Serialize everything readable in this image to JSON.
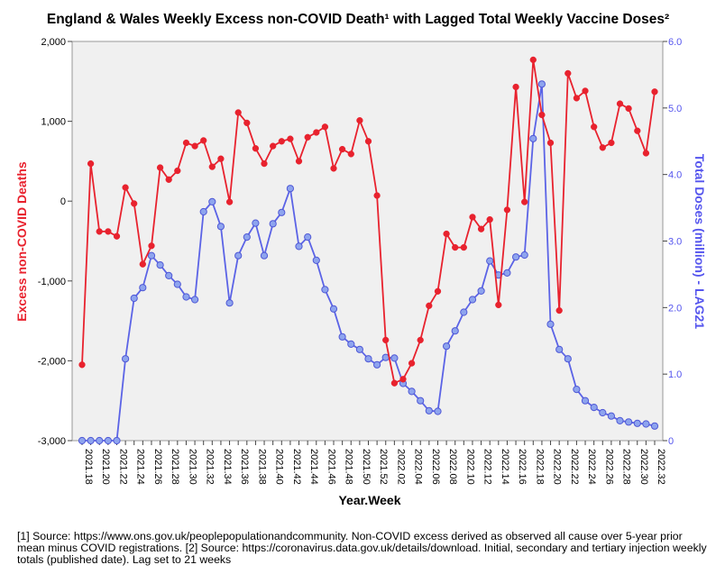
{
  "chart_data": {
    "type": "line",
    "title": "England & Wales Weekly Excess non-COVID Death¹ with Lagged Total Weekly Vaccine Doses²",
    "xlabel": "Year.Week",
    "ylabel_left": "Excess non-COVID Deaths",
    "ylabel_right": "Total Doses (million) - LAG21",
    "y_left_lim": [
      -3000,
      2000
    ],
    "y_left_ticks": [
      -3000,
      -2000,
      -1000,
      0,
      1000,
      2000
    ],
    "y_left_tick_labels": [
      "-3,000",
      "-2,000",
      "-1,000",
      "0",
      "1,000",
      "2,000"
    ],
    "y_right_lim": [
      0,
      6
    ],
    "y_right_ticks": [
      0,
      1,
      2,
      3,
      4,
      5,
      6
    ],
    "y_right_tick_labels": [
      "0",
      "1.0",
      "2.0",
      "3.0",
      "4.0",
      "5.0",
      "6.0"
    ],
    "x_tick_labels": [
      "2021.18",
      "2021.20",
      "2021.22",
      "2021.24",
      "2021.26",
      "2021.28",
      "2021.30",
      "2021.32",
      "2021.34",
      "2021.36",
      "2021.38",
      "2021.40",
      "2021.42",
      "2021.44",
      "2021.46",
      "2021.48",
      "2021.50",
      "2021.52",
      "2022.02",
      "2022.04",
      "2022.06",
      "2022.08",
      "2022.10",
      "2022.12",
      "2022.14",
      "2022.16",
      "2022.18",
      "2022.20",
      "2022.22",
      "2022.24",
      "2022.26",
      "2022.28",
      "2022.30",
      "2022.32"
    ],
    "grid": false,
    "series": [
      {
        "name": "Excess non-COVID Deaths",
        "axis": "left",
        "color": "#e8222e",
        "values": [
          -2050,
          470,
          -380,
          -380,
          -440,
          170,
          -30,
          -790,
          -560,
          420,
          270,
          380,
          730,
          690,
          760,
          430,
          530,
          -10,
          1110,
          980,
          660,
          470,
          690,
          750,
          780,
          500,
          800,
          860,
          930,
          410,
          650,
          590,
          1010,
          750,
          70,
          -1740,
          -2280,
          -2230,
          -2030,
          -1740,
          -1310,
          -1130,
          -410,
          -580,
          -580,
          -200,
          -350,
          -230,
          -1300,
          -110,
          1430,
          -10,
          1770,
          1080,
          730,
          -1370,
          1600,
          1290,
          1380,
          930,
          670,
          730,
          1220,
          1160,
          880,
          600,
          1370
        ]
      },
      {
        "name": "Total Doses (million) - LAG21",
        "axis": "right",
        "color": "#5b63e6",
        "values": [
          0,
          0,
          0,
          0,
          0,
          1.23,
          2.14,
          2.3,
          2.78,
          2.64,
          2.48,
          2.35,
          2.16,
          2.12,
          3.44,
          3.59,
          3.22,
          2.07,
          2.78,
          3.06,
          3.27,
          2.78,
          3.26,
          3.43,
          3.79,
          2.92,
          3.06,
          2.71,
          2.27,
          1.98,
          1.56,
          1.45,
          1.37,
          1.23,
          1.14,
          1.25,
          1.24,
          0.86,
          0.74,
          0.6,
          0.45,
          0.44,
          1.42,
          1.65,
          1.93,
          2.12,
          2.25,
          2.7,
          2.49,
          2.52,
          2.76,
          2.79,
          4.54,
          5.36,
          1.75,
          1.37,
          1.23,
          0.77,
          0.6,
          0.5,
          0.42,
          0.37,
          0.3,
          0.28,
          0.26,
          0.25,
          0.22
        ]
      }
    ]
  },
  "footnote": "[1] Source: https://www.ons.gov.uk/peoplepopulationandcommunity. Non-COVID excess derived as observed all cause over 5-year prior mean minus COVID registrations. [2] Source: https://coronavirus.data.gov.uk/details/download. Initial, secondary and tertiary injection weekly totals (published date). Lag set to 21 weeks"
}
